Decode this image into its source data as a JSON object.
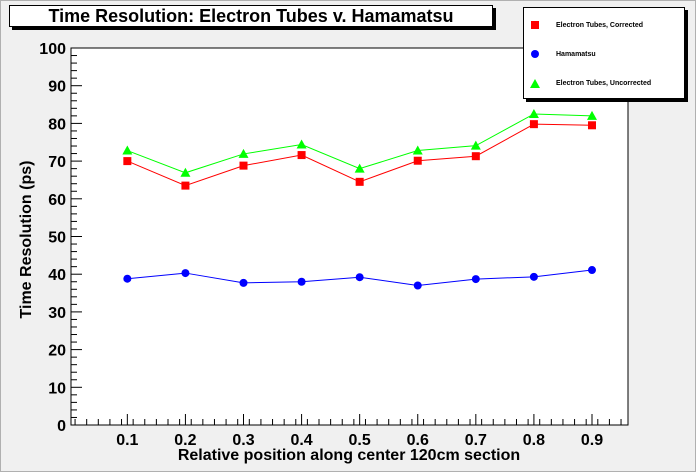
{
  "chart_data": {
    "type": "line",
    "title": "Time Resolution: Electron Tubes v. Hamamatsu",
    "xlabel": "Relative position along center 120cm section",
    "ylabel": "Time Resolution (ps)",
    "x": [
      0.1,
      0.2,
      0.3,
      0.4,
      0.5,
      0.6,
      0.7,
      0.8,
      0.9
    ],
    "x_tick_labels": [
      "0.1",
      "0.2",
      "0.3",
      "0.4",
      "0.5",
      "0.6",
      "0.7",
      "0.8",
      "0.9"
    ],
    "xlim": [
      0.003,
      0.962
    ],
    "ylim": [
      0,
      100
    ],
    "y_tick_labels": [
      "0",
      "10",
      "20",
      "30",
      "40",
      "50",
      "60",
      "70",
      "80",
      "90",
      "100"
    ],
    "grid": false,
    "legend_position": "top-right",
    "series": [
      {
        "name": "Electron Tubes, Corrected",
        "marker": "square",
        "color": "#ff0000",
        "values": [
          70.0,
          63.5,
          68.8,
          71.6,
          64.5,
          70.1,
          71.3,
          79.8,
          79.5
        ]
      },
      {
        "name": "Hamamatsu",
        "marker": "circle",
        "color": "#0000ff",
        "values": [
          38.8,
          40.3,
          37.7,
          38.0,
          39.2,
          37.0,
          38.7,
          39.3,
          41.1
        ]
      },
      {
        "name": "Electron Tubes, Uncorrected",
        "marker": "triangle",
        "color": "#00ff00",
        "values": [
          72.8,
          66.9,
          71.9,
          74.4,
          68.0,
          72.8,
          74.1,
          82.5,
          82.0
        ]
      }
    ]
  }
}
